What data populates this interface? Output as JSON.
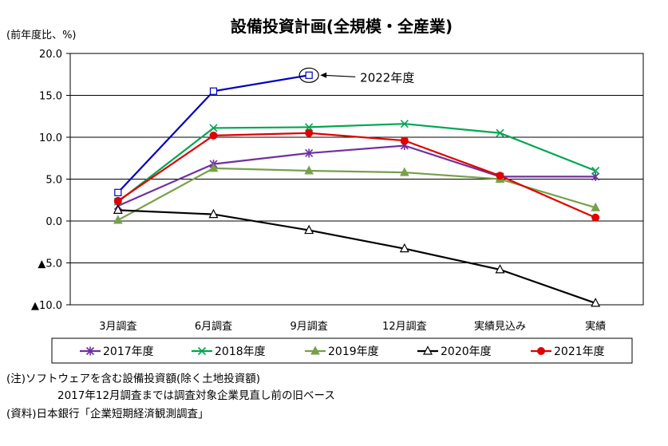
{
  "chart_data": {
    "type": "line",
    "title": "設備投資計画(全規模・全産業)",
    "ylabel": "(前年度比、%)",
    "categories": [
      "3月調査",
      "6月調査",
      "9月調査",
      "12月調査",
      "実績見込み",
      "実績"
    ],
    "ylim": [
      -10,
      20
    ],
    "yticks": [
      {
        "value": 20,
        "label": "20.0"
      },
      {
        "value": 15,
        "label": "15.0"
      },
      {
        "value": 10,
        "label": "10.0"
      },
      {
        "value": 5,
        "label": "5.0"
      },
      {
        "value": 0,
        "label": "0.0"
      },
      {
        "value": -5,
        "label": "▲5.0"
      },
      {
        "value": -10,
        "label": "▲10.0"
      }
    ],
    "grid": true,
    "legend_position": "bottom",
    "series": [
      {
        "name": "2017年度",
        "color": "#7030a0",
        "marker": "asterisk",
        "values": [
          1.8,
          6.8,
          8.1,
          9.0,
          5.3,
          5.3
        ]
      },
      {
        "name": "2018年度",
        "color": "#00a651",
        "marker": "x",
        "values": [
          2.3,
          11.1,
          11.2,
          11.6,
          10.5,
          6.0
        ]
      },
      {
        "name": "2019年度",
        "color": "#77a04a",
        "marker": "triangle-filled",
        "values": [
          0.1,
          6.3,
          6.0,
          5.8,
          5.0,
          1.6
        ]
      },
      {
        "name": "2020年度",
        "color": "#000000",
        "marker": "triangle-open",
        "values": [
          1.3,
          0.8,
          -1.1,
          -3.3,
          -5.8,
          -9.8
        ]
      },
      {
        "name": "2021年度",
        "color": "#e00000",
        "marker": "circle-filled",
        "values": [
          2.4,
          10.2,
          10.5,
          9.6,
          5.4,
          0.4
        ]
      },
      {
        "name": "2022年度",
        "color": "#0000c0",
        "marker": "square-open",
        "values": [
          3.4,
          15.5,
          17.4,
          null,
          null,
          null
        ]
      }
    ],
    "annotation": {
      "text": "2022年度",
      "series": "2022年度",
      "category_index": 2
    }
  },
  "notes": [
    "(注)ソフトウェアを含む設備投資額(除く土地投資額)",
    "2017年12月調査までは調査対象企業見直し前の旧ベース",
    "(資料)日本銀行「企業短期経済観測調査」"
  ]
}
